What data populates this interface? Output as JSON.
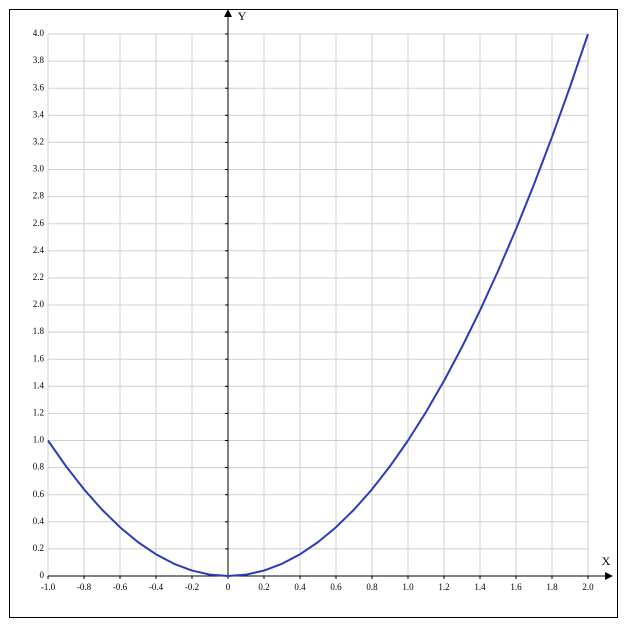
{
  "chart_data": {
    "type": "line",
    "x_label": "X",
    "y_label": "Y",
    "x": [
      -1,
      -0.9,
      -0.8,
      -0.7,
      -0.6,
      -0.5,
      -0.4,
      -0.3,
      -0.2,
      -0.1,
      0,
      0.1,
      0.2,
      0.3,
      0.4,
      0.5,
      0.6,
      0.7,
      0.8,
      0.9,
      1,
      1.1,
      1.2,
      1.3,
      1.4,
      1.5,
      1.6,
      1.7,
      1.8,
      1.9,
      2
    ],
    "values": [
      1,
      0.81,
      0.64,
      0.49,
      0.36,
      0.25,
      0.16,
      0.09,
      0.04,
      0.01,
      0,
      0.01,
      0.04,
      0.09,
      0.16,
      0.25,
      0.36,
      0.49,
      0.64,
      0.81,
      1,
      1.21,
      1.44,
      1.69,
      1.96,
      2.25,
      2.56,
      2.89,
      3.24,
      3.61,
      4
    ],
    "color": "#2a3cb8",
    "xlim": [
      -1,
      2
    ],
    "xticks": [
      {
        "value": -1,
        "label": "-1.0"
      },
      -0.8,
      -0.6,
      -0.4,
      -0.2,
      0,
      0.2,
      0.4,
      0.6,
      0.8,
      {
        "value": 1,
        "label": "1.0"
      },
      1.2,
      1.4,
      1.6,
      1.8,
      {
        "value": 2,
        "label": "2.0"
      }
    ],
    "ylim": [
      0,
      4
    ],
    "yticks": [
      0,
      0.2,
      0.4,
      0.6,
      0.8,
      {
        "value": 1,
        "label": "1.0"
      },
      1.2,
      1.4,
      1.6,
      1.8,
      {
        "value": 2,
        "label": "2.0"
      },
      2.2,
      2.4,
      2.6,
      2.8,
      {
        "value": 3,
        "label": "3.0"
      },
      3.2,
      3.4,
      3.6,
      3.8,
      {
        "value": 4,
        "label": "4.0"
      }
    ],
    "grid": true
  }
}
